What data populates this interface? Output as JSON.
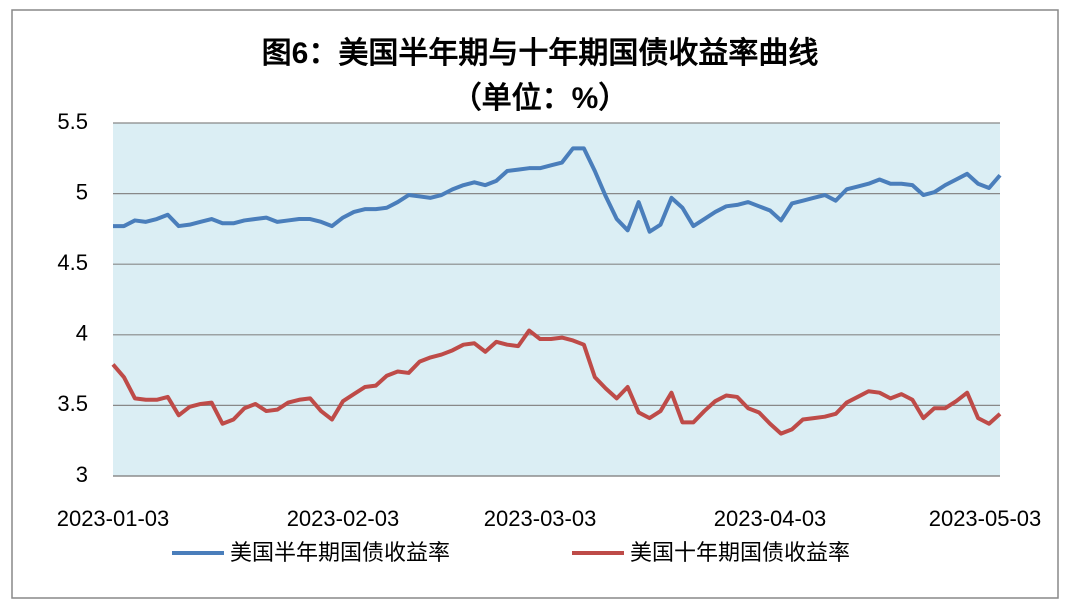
{
  "chart_data": {
    "type": "line",
    "title": "图6：美国半年期与十年期国债收益率曲线",
    "subtitle": "（单位：%）",
    "categories": [
      "2023-01-03",
      null,
      null,
      null,
      null,
      null,
      null,
      null,
      null,
      null,
      null,
      null,
      null,
      null,
      null,
      null,
      null,
      null,
      null,
      null,
      null,
      "2023-02-03",
      null,
      null,
      null,
      null,
      null,
      null,
      null,
      null,
      null,
      null,
      null,
      null,
      null,
      null,
      null,
      null,
      null,
      "2023-03-03",
      null,
      null,
      null,
      null,
      null,
      null,
      null,
      null,
      null,
      null,
      null,
      null,
      null,
      null,
      null,
      null,
      null,
      null,
      null,
      null,
      "2023-04-03",
      null,
      null,
      null,
      null,
      null,
      null,
      null,
      null,
      null,
      null,
      null,
      null,
      null,
      null,
      null,
      null,
      null,
      null,
      null,
      null,
      "2023-05-03"
    ],
    "series": [
      {
        "name": "美国半年期国债收益率",
        "color": "#4a7ebb",
        "values": [
          4.77,
          4.77,
          4.81,
          4.8,
          4.82,
          4.85,
          4.77,
          4.78,
          4.8,
          4.82,
          4.79,
          4.79,
          4.81,
          4.82,
          4.83,
          4.8,
          4.81,
          4.82,
          4.82,
          4.8,
          4.77,
          4.83,
          4.87,
          4.89,
          4.89,
          4.9,
          4.94,
          4.99,
          4.98,
          4.97,
          4.99,
          5.03,
          5.06,
          5.08,
          5.06,
          5.09,
          5.16,
          5.17,
          5.18,
          5.18,
          5.2,
          5.22,
          5.32,
          5.32,
          5.16,
          4.98,
          4.82,
          4.74,
          4.94,
          4.73,
          4.78,
          4.97,
          4.9,
          4.77,
          4.82,
          4.87,
          4.91,
          4.92,
          4.94,
          4.91,
          4.88,
          4.81,
          4.93,
          4.95,
          4.97,
          4.99,
          4.95,
          5.03,
          5.05,
          5.07,
          5.1,
          5.07,
          5.07,
          5.06,
          4.99,
          5.01,
          5.06,
          5.1,
          5.14,
          5.07,
          5.04,
          5.13
        ]
      },
      {
        "name": "美国十年期国债收益率",
        "color": "#be4b48",
        "values": [
          3.79,
          3.7,
          3.55,
          3.54,
          3.54,
          3.56,
          3.43,
          3.49,
          3.51,
          3.52,
          3.37,
          3.4,
          3.48,
          3.51,
          3.46,
          3.47,
          3.52,
          3.54,
          3.55,
          3.46,
          3.4,
          3.53,
          3.58,
          3.63,
          3.64,
          3.71,
          3.74,
          3.73,
          3.81,
          3.84,
          3.86,
          3.89,
          3.93,
          3.94,
          3.88,
          3.95,
          3.93,
          3.92,
          4.03,
          3.97,
          3.97,
          3.98,
          3.96,
          3.93,
          3.7,
          3.62,
          3.55,
          3.63,
          3.45,
          3.41,
          3.46,
          3.59,
          3.38,
          3.38,
          3.46,
          3.53,
          3.57,
          3.56,
          3.48,
          3.45,
          3.37,
          3.3,
          3.33,
          3.4,
          3.41,
          3.42,
          3.44,
          3.52,
          3.56,
          3.6,
          3.59,
          3.55,
          3.58,
          3.54,
          3.41,
          3.48,
          3.48,
          3.53,
          3.59,
          3.41,
          3.37,
          3.44
        ]
      }
    ],
    "ylim": [
      3,
      5.5
    ],
    "yticks": [
      3,
      3.5,
      4,
      4.5,
      5,
      5.5
    ],
    "grid": true,
    "legend": "bottom"
  }
}
